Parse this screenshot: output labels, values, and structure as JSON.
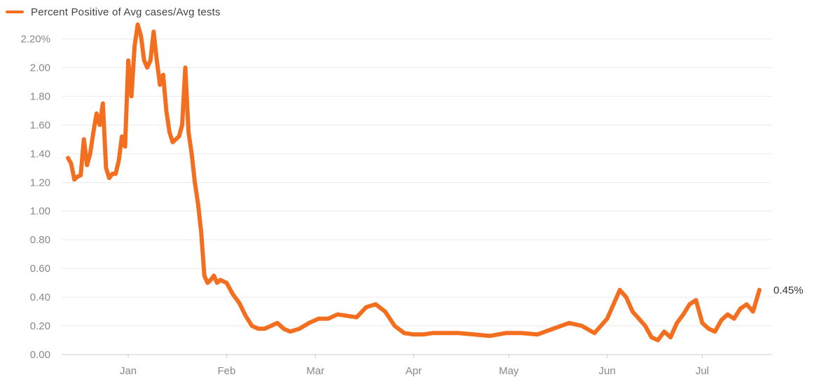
{
  "legend": {
    "label": "Percent Positive of Avg cases/Avg tests"
  },
  "colors": {
    "line": "#f36f1f",
    "grid": "#e9e9e9",
    "axis": "#cccccc",
    "tick_text": "#888888"
  },
  "chart_data": {
    "type": "line",
    "title": "",
    "xlabel": "",
    "ylabel": "",
    "ylim": [
      0,
      2.3
    ],
    "y_ticks": [
      {
        "value": 0.0,
        "label": "0.00"
      },
      {
        "value": 0.2,
        "label": "0.20"
      },
      {
        "value": 0.4,
        "label": "0.40"
      },
      {
        "value": 0.6,
        "label": "0.60"
      },
      {
        "value": 0.8,
        "label": "0.80"
      },
      {
        "value": 1.0,
        "label": "1.00"
      },
      {
        "value": 1.2,
        "label": "1.20"
      },
      {
        "value": 1.4,
        "label": "1.40"
      },
      {
        "value": 1.6,
        "label": "1.60"
      },
      {
        "value": 1.8,
        "label": "1.80"
      },
      {
        "value": 2.0,
        "label": "2.00"
      },
      {
        "value": 2.2,
        "label": "2.20%"
      }
    ],
    "x_range": [
      "2020-12-11",
      "2021-07-23"
    ],
    "x_ticks": [
      {
        "date": "2021-01-01",
        "label": "Jan"
      },
      {
        "date": "2021-02-01",
        "label": "Feb"
      },
      {
        "date": "2021-03-01",
        "label": "Mar"
      },
      {
        "date": "2021-04-01",
        "label": "Apr"
      },
      {
        "date": "2021-05-01",
        "label": "May"
      },
      {
        "date": "2021-06-01",
        "label": "Jun"
      },
      {
        "date": "2021-07-01",
        "label": "Jul"
      }
    ],
    "grid": true,
    "legend_position": "top-left",
    "end_label": "0.45%",
    "series": [
      {
        "name": "Percent Positive of Avg cases/Avg tests",
        "x": [
          "2020-12-13",
          "2020-12-14",
          "2020-12-15",
          "2020-12-16",
          "2020-12-17",
          "2020-12-18",
          "2020-12-19",
          "2020-12-20",
          "2020-12-21",
          "2020-12-22",
          "2020-12-23",
          "2020-12-24",
          "2020-12-25",
          "2020-12-26",
          "2020-12-27",
          "2020-12-28",
          "2020-12-29",
          "2020-12-30",
          "2020-12-31",
          "2021-01-01",
          "2021-01-02",
          "2021-01-03",
          "2021-01-04",
          "2021-01-05",
          "2021-01-06",
          "2021-01-07",
          "2021-01-08",
          "2021-01-09",
          "2021-01-10",
          "2021-01-11",
          "2021-01-12",
          "2021-01-13",
          "2021-01-14",
          "2021-01-15",
          "2021-01-16",
          "2021-01-17",
          "2021-01-18",
          "2021-01-19",
          "2021-01-20",
          "2021-01-21",
          "2021-01-22",
          "2021-01-23",
          "2021-01-24",
          "2021-01-25",
          "2021-01-26",
          "2021-01-27",
          "2021-01-28",
          "2021-01-29",
          "2021-01-30",
          "2021-02-01",
          "2021-02-03",
          "2021-02-05",
          "2021-02-07",
          "2021-02-09",
          "2021-02-11",
          "2021-02-13",
          "2021-02-15",
          "2021-02-17",
          "2021-02-19",
          "2021-02-21",
          "2021-02-24",
          "2021-02-27",
          "2021-03-02",
          "2021-03-05",
          "2021-03-08",
          "2021-03-11",
          "2021-03-14",
          "2021-03-17",
          "2021-03-20",
          "2021-03-23",
          "2021-03-26",
          "2021-03-29",
          "2021-04-01",
          "2021-04-04",
          "2021-04-07",
          "2021-04-10",
          "2021-04-15",
          "2021-04-20",
          "2021-04-25",
          "2021-04-30",
          "2021-05-05",
          "2021-05-10",
          "2021-05-15",
          "2021-05-20",
          "2021-05-24",
          "2021-05-28",
          "2021-06-01",
          "2021-06-03",
          "2021-06-05",
          "2021-06-07",
          "2021-06-09",
          "2021-06-11",
          "2021-06-13",
          "2021-06-15",
          "2021-06-17",
          "2021-06-19",
          "2021-06-21",
          "2021-06-23",
          "2021-06-25",
          "2021-06-27",
          "2021-06-29",
          "2021-07-01",
          "2021-07-03",
          "2021-07-05",
          "2021-07-07",
          "2021-07-09",
          "2021-07-11",
          "2021-07-13",
          "2021-07-15",
          "2021-07-17",
          "2021-07-19"
        ],
        "values": [
          1.37,
          1.33,
          1.22,
          1.24,
          1.25,
          1.5,
          1.32,
          1.4,
          1.55,
          1.68,
          1.6,
          1.75,
          1.3,
          1.23,
          1.26,
          1.26,
          1.35,
          1.52,
          1.45,
          2.05,
          1.8,
          2.15,
          2.3,
          2.22,
          2.05,
          2.0,
          2.05,
          2.25,
          2.05,
          1.88,
          1.95,
          1.7,
          1.55,
          1.48,
          1.5,
          1.52,
          1.6,
          2.0,
          1.55,
          1.4,
          1.2,
          1.05,
          0.85,
          0.55,
          0.5,
          0.52,
          0.55,
          0.5,
          0.52,
          0.5,
          0.42,
          0.36,
          0.27,
          0.2,
          0.18,
          0.18,
          0.2,
          0.22,
          0.18,
          0.16,
          0.18,
          0.22,
          0.25,
          0.25,
          0.28,
          0.27,
          0.26,
          0.33,
          0.35,
          0.3,
          0.2,
          0.15,
          0.14,
          0.14,
          0.15,
          0.15,
          0.15,
          0.14,
          0.13,
          0.15,
          0.15,
          0.14,
          0.18,
          0.22,
          0.2,
          0.15,
          0.25,
          0.35,
          0.45,
          0.4,
          0.3,
          0.25,
          0.2,
          0.12,
          0.1,
          0.16,
          0.12,
          0.22,
          0.28,
          0.35,
          0.38,
          0.22,
          0.18,
          0.16,
          0.24,
          0.28,
          0.25,
          0.32,
          0.35,
          0.3,
          0.45
        ]
      }
    ]
  }
}
